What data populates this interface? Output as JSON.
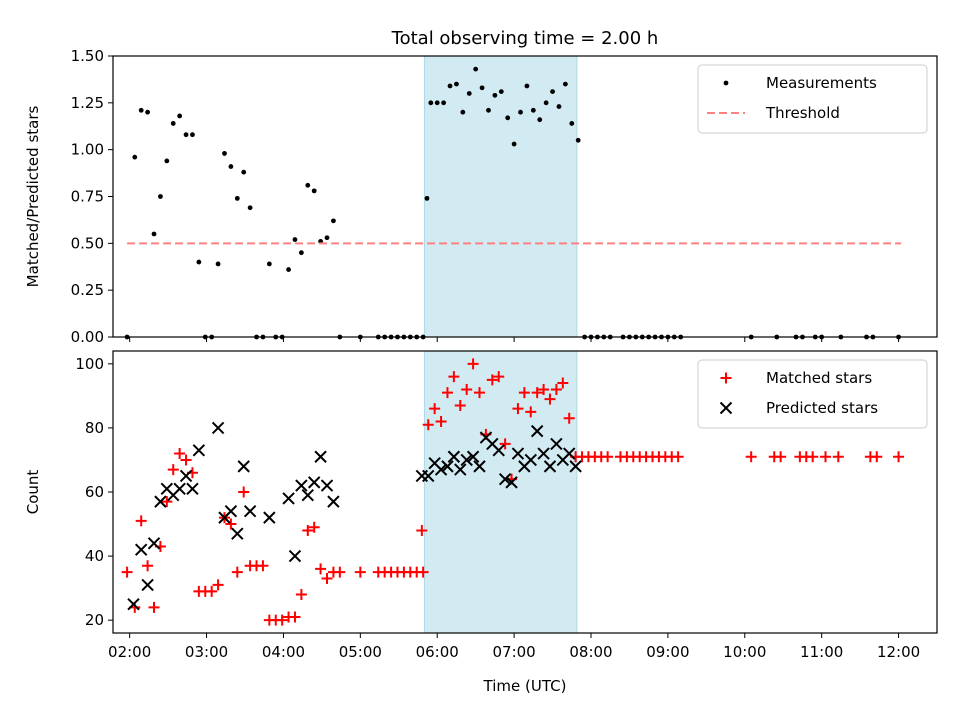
{
  "chart_data": [
    {
      "type": "scatter",
      "title": "Total observing time = 2.00 h",
      "ylabel": "Matched/Predicted stars",
      "xlabel": "",
      "xlim": [
        "01:47",
        "12:30"
      ],
      "ylim": [
        0,
        1.5
      ],
      "yticks": [
        0.0,
        0.25,
        0.5,
        0.75,
        1.0,
        1.25,
        1.5
      ],
      "ytick_labels": [
        "0.00",
        "0.25",
        "0.50",
        "0.75",
        "1.00",
        "1.25",
        "1.50"
      ],
      "xticks": [
        "02:00",
        "03:00",
        "04:00",
        "05:00",
        "06:00",
        "07:00",
        "08:00",
        "09:00",
        "10:00",
        "11:00",
        "12:00"
      ],
      "highlight_span": [
        "05:50",
        "07:49"
      ],
      "highlight_color": "#add8e6",
      "legend": {
        "placement": "top-right",
        "entries": [
          "Measurements",
          "Threshold"
        ]
      },
      "series": [
        {
          "name": "Measurements",
          "style": "dot",
          "color": "#000000",
          "points": [
            [
              "01:58",
              0.0
            ],
            [
              "02:04",
              0.96
            ],
            [
              "02:09",
              1.21
            ],
            [
              "02:14",
              1.2
            ],
            [
              "02:19",
              0.55
            ],
            [
              "02:24",
              0.75
            ],
            [
              "02:29",
              0.94
            ],
            [
              "02:34",
              1.14
            ],
            [
              "02:39",
              1.18
            ],
            [
              "02:44",
              1.08
            ],
            [
              "02:49",
              1.08
            ],
            [
              "02:54",
              0.4
            ],
            [
              "02:59",
              0.0
            ],
            [
              "03:04",
              0.0
            ],
            [
              "03:09",
              0.39
            ],
            [
              "03:14",
              0.98
            ],
            [
              "03:19",
              0.91
            ],
            [
              "03:24",
              0.74
            ],
            [
              "03:29",
              0.88
            ],
            [
              "03:34",
              0.69
            ],
            [
              "03:39",
              0.0
            ],
            [
              "03:44",
              0.0
            ],
            [
              "03:49",
              0.39
            ],
            [
              "03:54",
              0.0
            ],
            [
              "03:59",
              0.0
            ],
            [
              "04:04",
              0.36
            ],
            [
              "04:09",
              0.52
            ],
            [
              "04:14",
              0.45
            ],
            [
              "04:19",
              0.81
            ],
            [
              "04:24",
              0.78
            ],
            [
              "04:29",
              0.51
            ],
            [
              "04:34",
              0.53
            ],
            [
              "04:39",
              0.62
            ],
            [
              "04:44",
              0.0
            ],
            [
              "05:00",
              0.0
            ],
            [
              "05:14",
              0.0
            ],
            [
              "05:19",
              0.0
            ],
            [
              "05:24",
              0.0
            ],
            [
              "05:29",
              0.0
            ],
            [
              "05:34",
              0.0
            ],
            [
              "05:39",
              0.0
            ],
            [
              "05:44",
              0.0
            ],
            [
              "05:49",
              0.0
            ],
            [
              "05:52",
              0.74
            ],
            [
              "05:55",
              1.25
            ],
            [
              "06:00",
              1.25
            ],
            [
              "06:05",
              1.25
            ],
            [
              "06:10",
              1.34
            ],
            [
              "06:15",
              1.35
            ],
            [
              "06:20",
              1.2
            ],
            [
              "06:25",
              1.3
            ],
            [
              "06:30",
              1.43
            ],
            [
              "06:35",
              1.33
            ],
            [
              "06:40",
              1.21
            ],
            [
              "06:45",
              1.29
            ],
            [
              "06:50",
              1.31
            ],
            [
              "06:55",
              1.17
            ],
            [
              "07:00",
              1.03
            ],
            [
              "07:05",
              1.2
            ],
            [
              "07:10",
              1.34
            ],
            [
              "07:15",
              1.21
            ],
            [
              "07:20",
              1.16
            ],
            [
              "07:25",
              1.25
            ],
            [
              "07:30",
              1.31
            ],
            [
              "07:35",
              1.23
            ],
            [
              "07:40",
              1.35
            ],
            [
              "07:45",
              1.14
            ],
            [
              "07:50",
              1.05
            ],
            [
              "07:55",
              0.0
            ],
            [
              "08:00",
              0.0
            ],
            [
              "08:05",
              0.0
            ],
            [
              "08:10",
              0.0
            ],
            [
              "08:15",
              0.0
            ],
            [
              "08:25",
              0.0
            ],
            [
              "08:30",
              0.0
            ],
            [
              "08:35",
              0.0
            ],
            [
              "08:40",
              0.0
            ],
            [
              "08:45",
              0.0
            ],
            [
              "08:50",
              0.0
            ],
            [
              "08:55",
              0.0
            ],
            [
              "09:00",
              0.0
            ],
            [
              "09:05",
              0.0
            ],
            [
              "09:10",
              0.0
            ],
            [
              "10:05",
              0.0
            ],
            [
              "10:25",
              0.0
            ],
            [
              "10:40",
              0.0
            ],
            [
              "10:45",
              0.0
            ],
            [
              "10:55",
              0.0
            ],
            [
              "11:00",
              0.0
            ],
            [
              "11:15",
              0.0
            ],
            [
              "11:35",
              0.0
            ],
            [
              "11:40",
              0.0
            ],
            [
              "12:00",
              0.0
            ]
          ]
        },
        {
          "name": "Threshold",
          "style": "dashed-line",
          "color": "#ff8080",
          "points": [
            [
              "01:58",
              0.5
            ],
            [
              "12:02",
              0.5
            ]
          ]
        }
      ]
    },
    {
      "type": "scatter",
      "title": "",
      "ylabel": "Count",
      "xlabel": "Time (UTC)",
      "xlim": [
        "01:47",
        "12:30"
      ],
      "ylim": [
        16,
        104
      ],
      "yticks": [
        20,
        40,
        60,
        80,
        100
      ],
      "ytick_labels": [
        "20",
        "40",
        "60",
        "80",
        "100"
      ],
      "xticks": [
        "02:00",
        "03:00",
        "04:00",
        "05:00",
        "06:00",
        "07:00",
        "08:00",
        "09:00",
        "10:00",
        "11:00",
        "12:00"
      ],
      "xtick_labels": [
        "02:00",
        "03:00",
        "04:00",
        "05:00",
        "06:00",
        "07:00",
        "08:00",
        "09:00",
        "10:00",
        "11:00",
        "12:00"
      ],
      "highlight_span": [
        "05:50",
        "07:49"
      ],
      "highlight_color": "#add8e6",
      "legend": {
        "placement": "top-right",
        "entries": [
          "Matched stars",
          "Predicted stars"
        ]
      },
      "series": [
        {
          "name": "Matched stars",
          "style": "plus",
          "color": "#ff0000",
          "points": [
            [
              "01:58",
              35
            ],
            [
              "02:04",
              24
            ],
            [
              "02:09",
              51
            ],
            [
              "02:14",
              37
            ],
            [
              "02:19",
              24
            ],
            [
              "02:24",
              43
            ],
            [
              "02:29",
              57
            ],
            [
              "02:34",
              67
            ],
            [
              "02:39",
              72
            ],
            [
              "02:44",
              70
            ],
            [
              "02:49",
              66
            ],
            [
              "02:54",
              29
            ],
            [
              "02:59",
              29
            ],
            [
              "03:04",
              29
            ],
            [
              "03:09",
              31
            ],
            [
              "03:14",
              52
            ],
            [
              "03:19",
              50
            ],
            [
              "03:24",
              35
            ],
            [
              "03:29",
              60
            ],
            [
              "03:34",
              37
            ],
            [
              "03:39",
              37
            ],
            [
              "03:44",
              37
            ],
            [
              "03:49",
              20
            ],
            [
              "03:54",
              20
            ],
            [
              "03:59",
              20
            ],
            [
              "04:04",
              21
            ],
            [
              "04:09",
              21
            ],
            [
              "04:14",
              28
            ],
            [
              "04:19",
              48
            ],
            [
              "04:24",
              49
            ],
            [
              "04:29",
              36
            ],
            [
              "04:34",
              33
            ],
            [
              "04:39",
              35
            ],
            [
              "04:44",
              35
            ],
            [
              "05:00",
              35
            ],
            [
              "05:14",
              35
            ],
            [
              "05:19",
              35
            ],
            [
              "05:24",
              35
            ],
            [
              "05:29",
              35
            ],
            [
              "05:34",
              35
            ],
            [
              "05:39",
              35
            ],
            [
              "05:44",
              35
            ],
            [
              "05:49",
              35
            ],
            [
              "05:48",
              48
            ],
            [
              "05:53",
              81
            ],
            [
              "05:58",
              86
            ],
            [
              "06:03",
              82
            ],
            [
              "06:08",
              91
            ],
            [
              "06:13",
              96
            ],
            [
              "06:18",
              87
            ],
            [
              "06:23",
              92
            ],
            [
              "06:28",
              100
            ],
            [
              "06:33",
              91
            ],
            [
              "06:38",
              78
            ],
            [
              "06:43",
              95
            ],
            [
              "06:48",
              96
            ],
            [
              "06:53",
              75
            ],
            [
              "06:58",
              64
            ],
            [
              "07:03",
              86
            ],
            [
              "07:08",
              91
            ],
            [
              "07:13",
              85
            ],
            [
              "07:18",
              91
            ],
            [
              "07:23",
              92
            ],
            [
              "07:28",
              89
            ],
            [
              "07:33",
              92
            ],
            [
              "07:38",
              94
            ],
            [
              "07:43",
              83
            ],
            [
              "07:48",
              71
            ],
            [
              "07:53",
              71
            ],
            [
              "07:58",
              71
            ],
            [
              "08:03",
              71
            ],
            [
              "08:08",
              71
            ],
            [
              "08:13",
              71
            ],
            [
              "08:23",
              71
            ],
            [
              "08:28",
              71
            ],
            [
              "08:33",
              71
            ],
            [
              "08:38",
              71
            ],
            [
              "08:43",
              71
            ],
            [
              "08:48",
              71
            ],
            [
              "08:53",
              71
            ],
            [
              "08:58",
              71
            ],
            [
              "09:03",
              71
            ],
            [
              "09:08",
              71
            ],
            [
              "10:05",
              71
            ],
            [
              "10:23",
              71
            ],
            [
              "10:28",
              71
            ],
            [
              "10:43",
              71
            ],
            [
              "10:48",
              71
            ],
            [
              "10:53",
              71
            ],
            [
              "11:03",
              71
            ],
            [
              "11:13",
              71
            ],
            [
              "11:38",
              71
            ],
            [
              "11:43",
              71
            ],
            [
              "12:00",
              71
            ]
          ]
        },
        {
          "name": "Predicted stars",
          "style": "x",
          "color": "#000000",
          "points": [
            [
              "02:03",
              25
            ],
            [
              "02:09",
              42
            ],
            [
              "02:14",
              31
            ],
            [
              "02:19",
              44
            ],
            [
              "02:24",
              57
            ],
            [
              "02:29",
              61
            ],
            [
              "02:34",
              59
            ],
            [
              "02:39",
              61
            ],
            [
              "02:44",
              65
            ],
            [
              "02:49",
              61
            ],
            [
              "02:54",
              73
            ],
            [
              "03:09",
              80
            ],
            [
              "03:14",
              52
            ],
            [
              "03:19",
              54
            ],
            [
              "03:24",
              47
            ],
            [
              "03:29",
              68
            ],
            [
              "03:34",
              54
            ],
            [
              "03:49",
              52
            ],
            [
              "04:04",
              58
            ],
            [
              "04:09",
              40
            ],
            [
              "04:14",
              62
            ],
            [
              "04:19",
              59
            ],
            [
              "04:24",
              63
            ],
            [
              "04:29",
              71
            ],
            [
              "04:34",
              62
            ],
            [
              "04:39",
              57
            ],
            [
              "05:48",
              65
            ],
            [
              "05:53",
              65
            ],
            [
              "05:58",
              69
            ],
            [
              "06:03",
              67
            ],
            [
              "06:08",
              68
            ],
            [
              "06:13",
              71
            ],
            [
              "06:18",
              67
            ],
            [
              "06:23",
              70
            ],
            [
              "06:28",
              71
            ],
            [
              "06:33",
              68
            ],
            [
              "06:38",
              77
            ],
            [
              "06:43",
              75
            ],
            [
              "06:48",
              73
            ],
            [
              "06:53",
              64
            ],
            [
              "06:58",
              63
            ],
            [
              "07:03",
              72
            ],
            [
              "07:08",
              68
            ],
            [
              "07:13",
              70
            ],
            [
              "07:18",
              79
            ],
            [
              "07:23",
              72
            ],
            [
              "07:28",
              68
            ],
            [
              "07:33",
              75
            ],
            [
              "07:38",
              70
            ],
            [
              "07:43",
              72
            ],
            [
              "07:48",
              68
            ]
          ]
        }
      ]
    }
  ]
}
